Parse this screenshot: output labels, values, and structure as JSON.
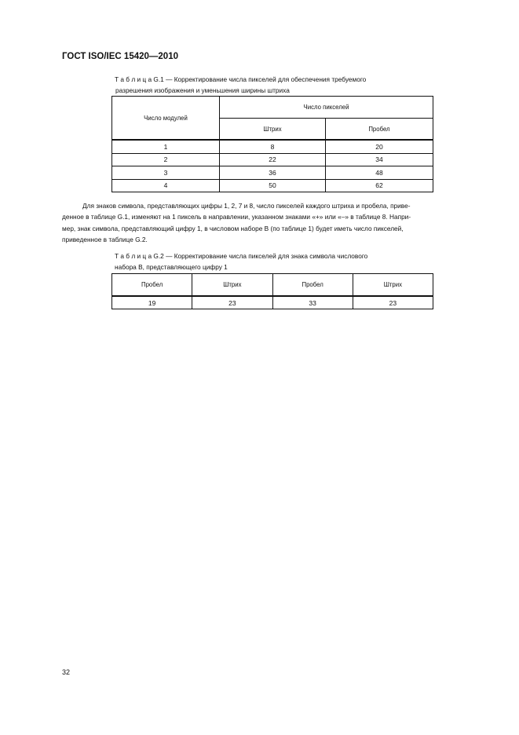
{
  "header": {
    "title": "ГОСТ  ISO/IEC 15420—2010"
  },
  "table1": {
    "caption_line1": "Т а б л и ц а   G.1 — Корректирование числа пикселей для обеспечения требуемого",
    "caption_line2": "разрешения изображения и уменьшения ширины штриха",
    "col_modules": "Число модулей",
    "col_pixels": "Число пикселей",
    "col_bar": "Штрих",
    "col_space": "Пробел",
    "rows": [
      [
        "1",
        "8",
        "20"
      ],
      [
        "2",
        "22",
        "34"
      ],
      [
        "3",
        "36",
        "48"
      ],
      [
        "4",
        "50",
        "62"
      ]
    ]
  },
  "paragraph": {
    "lines": [
      "Для знаков символа, представляющих цифры 1, 2, 7 и 8, число пикселей каждого штриха и пробела, приве-",
      "денное в таблице G.1, изменяют на 1 пиксель в направлении, указанном знаками «+» или «–» в таблице 8. Напри-",
      "мер, знак символа, представляющий цифру 1, в числовом наборе В (по таблице 1) будет иметь число пикселей,",
      "приведенное в таблице G.2."
    ]
  },
  "table2": {
    "caption_line1": "Т а б л и ц а   G.2 — Корректирование числа пикселей для знака символа числового",
    "caption_line2": "набора В, представляющего цифру 1",
    "headers": [
      "Пробел",
      "Штрих",
      "Пробел",
      "Штрих"
    ],
    "values": [
      "19",
      "23",
      "33",
      "23"
    ]
  },
  "footer": {
    "page_number": "32"
  }
}
